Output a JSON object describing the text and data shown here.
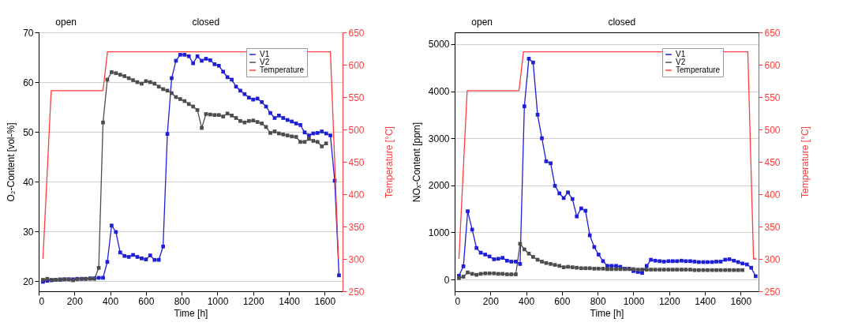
{
  "chart_data": [
    {
      "type": "line",
      "xlabel": "Time [h]",
      "ylabel": "O₂-Content [vol-%]",
      "y2label": "Temperature [°C]",
      "xlim": [
        0,
        1700
      ],
      "xticks": [
        0,
        200,
        400,
        600,
        800,
        1000,
        1200,
        1400,
        1600
      ],
      "ylim": [
        18,
        70
      ],
      "yticks": [
        20,
        30,
        40,
        50,
        60,
        70
      ],
      "y2lim": [
        250,
        650
      ],
      "y2ticks": [
        250,
        300,
        350,
        400,
        450,
        500,
        550,
        600,
        650
      ],
      "grid": "y",
      "legend": "top right",
      "marker": "square",
      "line_style": "solid",
      "annotations": [
        "open",
        "closed"
      ],
      "x": [
        24,
        48,
        72,
        96,
        120,
        144,
        168,
        192,
        216,
        240,
        264,
        288,
        312,
        336,
        360,
        384,
        408,
        432,
        456,
        480,
        504,
        528,
        552,
        576,
        600,
        624,
        648,
        672,
        696,
        720,
        744,
        768,
        792,
        816,
        840,
        864,
        888,
        912,
        936,
        960,
        984,
        1008,
        1032,
        1056,
        1080,
        1104,
        1128,
        1152,
        1176,
        1200,
        1224,
        1248,
        1272,
        1296,
        1320,
        1344,
        1368,
        1392,
        1416,
        1440,
        1464,
        1488,
        1512,
        1536,
        1560,
        1584,
        1608,
        1632,
        1656,
        1680
      ],
      "series": [
        {
          "name": "V1",
          "color": "#1f1fd6",
          "values": [
            19.9,
            20.1,
            20.2,
            20.3,
            20.3,
            20.4,
            20.4,
            20.4,
            20.5,
            20.5,
            20.5,
            20.6,
            20.6,
            20.7,
            20.7,
            23.9,
            31.2,
            29.9,
            25.8,
            25.1,
            24.9,
            25.3,
            24.9,
            24.6,
            24.4,
            25.2,
            24.3,
            24.3,
            27.0,
            49.6,
            60.8,
            64.3,
            65.5,
            65.5,
            65.2,
            63.8,
            65.2,
            64.3,
            64.7,
            64.4,
            63.6,
            63.3,
            62.1,
            61.0,
            60.5,
            59.1,
            58.3,
            57.6,
            56.9,
            56.5,
            56.7,
            56.0,
            55.1,
            53.8,
            52.8,
            53.3,
            52.8,
            52.4,
            52.1,
            51.7,
            51.4,
            49.9,
            49.3,
            49.7,
            49.8,
            50.1,
            49.7,
            49.3,
            40.2,
            21.2
          ]
        },
        {
          "name": "V2",
          "color": "#4d4d4d",
          "values": [
            20.3,
            20.5,
            20.3,
            20.3,
            20.4,
            20.4,
            20.4,
            20.2,
            20.4,
            20.5,
            20.5,
            20.5,
            20.5,
            22.7,
            51.9,
            60.5,
            62.0,
            61.8,
            61.5,
            61.2,
            60.8,
            60.4,
            60.0,
            59.7,
            60.2,
            60.0,
            59.7,
            59.1,
            58.6,
            58.3,
            57.8,
            57.0,
            56.6,
            56.2,
            55.6,
            55.1,
            54.4,
            50.8,
            53.6,
            53.5,
            53.4,
            53.4,
            53.1,
            53.7,
            53.3,
            52.8,
            52.2,
            51.9,
            52.2,
            52.3,
            52.0,
            51.7,
            51.0,
            49.8,
            50.1,
            49.7,
            49.5,
            49.3,
            49.1,
            49.0,
            48.0,
            48.0,
            48.6,
            48.2,
            48.0,
            47.1,
            47.7,
            null,
            null,
            null
          ]
        },
        {
          "name": "Temperature",
          "color": "#ff3b3b",
          "axis": "y2",
          "marker": "none",
          "x": [
            24,
            70,
            360,
            385,
            1632,
            1677
          ],
          "values": [
            300,
            560,
            560,
            620,
            620,
            300
          ]
        }
      ]
    },
    {
      "type": "line",
      "xlabel": "Time [h]",
      "ylabel": "NOₓ-Content [ppm]",
      "y2label": "Temperature [°C]",
      "xlim": [
        0,
        1700
      ],
      "xticks": [
        0,
        200,
        400,
        600,
        800,
        1000,
        1200,
        1400,
        1600
      ],
      "ylim": [
        -250,
        5250
      ],
      "yticks": [
        0,
        1000,
        2000,
        3000,
        4000,
        5000
      ],
      "y2lim": [
        250,
        650
      ],
      "y2ticks": [
        250,
        300,
        350,
        400,
        450,
        500,
        550,
        600,
        650
      ],
      "grid": "y",
      "legend": "top right",
      "marker": "square",
      "line_style": "solid",
      "annotations": [
        "open",
        "closed"
      ],
      "x": [
        24,
        49,
        73,
        98,
        122,
        146,
        171,
        195,
        220,
        244,
        268,
        293,
        317,
        342,
        366,
        390,
        415,
        439,
        464,
        488,
        512,
        537,
        561,
        586,
        610,
        634,
        659,
        683,
        708,
        732,
        756,
        781,
        805,
        830,
        854,
        878,
        903,
        927,
        952,
        976,
        1000,
        1025,
        1049,
        1074,
        1098,
        1122,
        1147,
        1171,
        1196,
        1220,
        1244,
        1269,
        1293,
        1318,
        1342,
        1366,
        1391,
        1415,
        1440,
        1464,
        1488,
        1513,
        1537,
        1562,
        1586,
        1610,
        1635,
        1659,
        1684
      ],
      "series": [
        {
          "name": "V1",
          "color": "#1f1fd6",
          "values": [
            80,
            280,
            1450,
            1060,
            670,
            570,
            530,
            490,
            430,
            440,
            460,
            400,
            380,
            380,
            330,
            3680,
            4690,
            4610,
            3500,
            3000,
            2510,
            2470,
            1990,
            1830,
            1730,
            1850,
            1710,
            1340,
            1510,
            1460,
            940,
            690,
            530,
            390,
            290,
            290,
            290,
            270,
            230,
            230,
            180,
            160,
            140,
            290,
            420,
            400,
            390,
            380,
            390,
            390,
            390,
            400,
            390,
            390,
            380,
            370,
            370,
            370,
            370,
            380,
            380,
            420,
            430,
            400,
            370,
            340,
            320,
            250,
            70
          ]
        },
        {
          "name": "V2",
          "color": "#4d4d4d",
          "values": [
            30,
            60,
            150,
            120,
            100,
            120,
            130,
            130,
            130,
            120,
            120,
            110,
            110,
            110,
            760,
            640,
            550,
            480,
            420,
            380,
            350,
            330,
            310,
            290,
            260,
            270,
            260,
            250,
            240,
            240,
            240,
            230,
            230,
            230,
            220,
            220,
            220,
            220,
            220,
            220,
            220,
            210,
            210,
            210,
            210,
            210,
            210,
            210,
            210,
            210,
            210,
            210,
            210,
            210,
            200,
            200,
            200,
            200,
            200,
            200,
            200,
            200,
            200,
            200,
            200,
            200,
            null,
            null,
            null
          ]
        },
        {
          "name": "Temperature",
          "color": "#ff3b3b",
          "axis": "y2",
          "marker": "none",
          "x": [
            24,
            70,
            360,
            385,
            1640,
            1672,
            1690
          ],
          "values": [
            300,
            560,
            560,
            620,
            620,
            300,
            300
          ]
        }
      ]
    }
  ]
}
